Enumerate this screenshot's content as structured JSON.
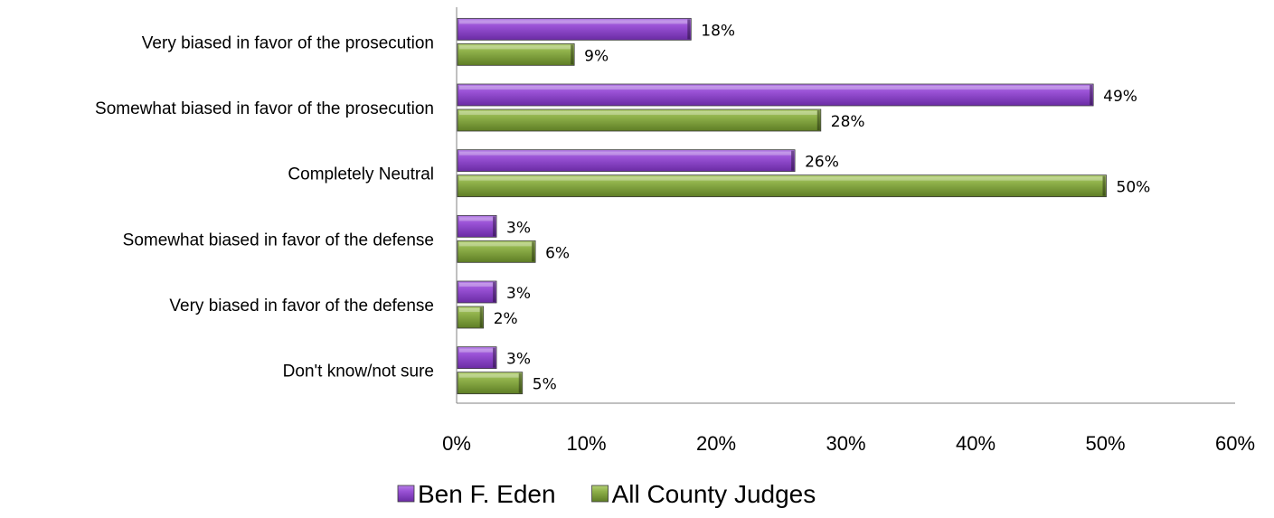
{
  "chart_data": {
    "type": "bar",
    "orientation": "horizontal",
    "categories": [
      "Very biased in favor of the prosecution",
      "Somewhat biased in favor of the prosecution",
      "Completely Neutral",
      "Somewhat biased in favor of the defense",
      "Very biased in favor of the defense",
      "Don't know/not sure"
    ],
    "series": [
      {
        "name": "Ben F. Eden",
        "values": [
          18,
          49,
          26,
          3,
          3,
          3
        ],
        "labels": [
          "18%",
          "49%",
          "26%",
          "3%",
          "3%",
          "3%"
        ],
        "color": "#8e3fc8"
      },
      {
        "name": "All County Judges",
        "values": [
          9,
          28,
          50,
          6,
          2,
          5
        ],
        "labels": [
          "9%",
          "28%",
          "50%",
          "6%",
          "2%",
          "5%"
        ],
        "color": "#7fa23a"
      }
    ],
    "xlim": [
      0,
      60
    ],
    "xticks": [
      "0%",
      "10%",
      "20%",
      "30%",
      "40%",
      "50%",
      "60%"
    ],
    "grid": false,
    "legend_position": "bottom"
  }
}
